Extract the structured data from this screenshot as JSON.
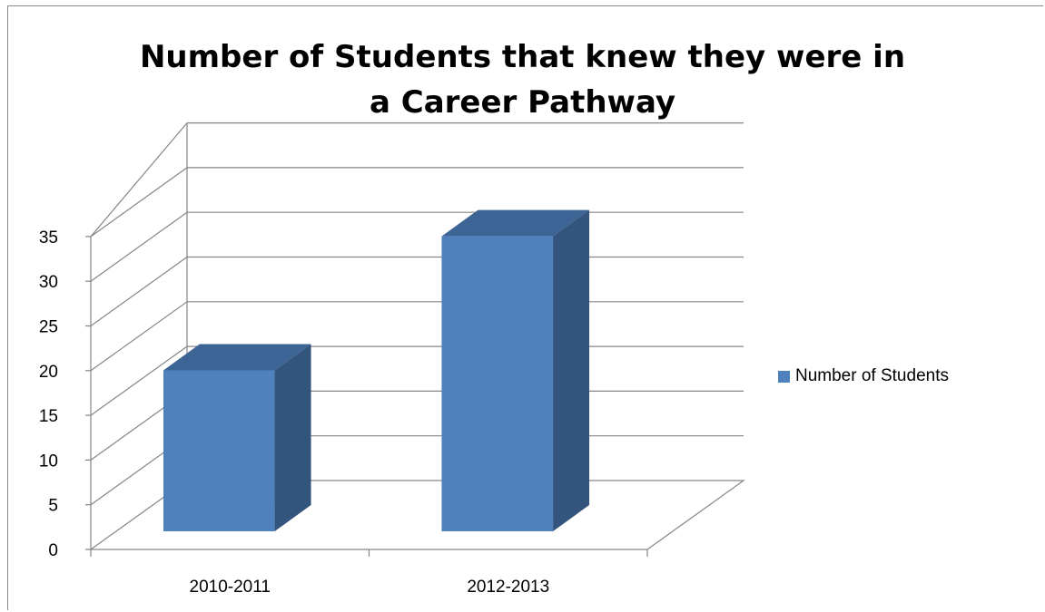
{
  "colors": {
    "bar_front": "#4f81bd",
    "bar_top": "#3c6596",
    "bar_side": "#33547c",
    "grid": "#868686",
    "axis": "#868686"
  },
  "chart_data": {
    "type": "bar",
    "title": "Number of Students that knew they were in a Career Pathway",
    "title_lines": [
      "Number of Students that knew they were in",
      "a Career Pathway"
    ],
    "xlabel": "",
    "ylabel": "",
    "categories": [
      "2010-2011",
      "2012-2013"
    ],
    "series": [
      {
        "name": "Number of Students",
        "values": [
          18,
          33
        ]
      }
    ],
    "ylim": [
      0,
      35
    ],
    "yticks": [
      0,
      5,
      10,
      15,
      20,
      25,
      30,
      35
    ],
    "gridlines": true,
    "legend_position": "right",
    "three_d": true
  }
}
